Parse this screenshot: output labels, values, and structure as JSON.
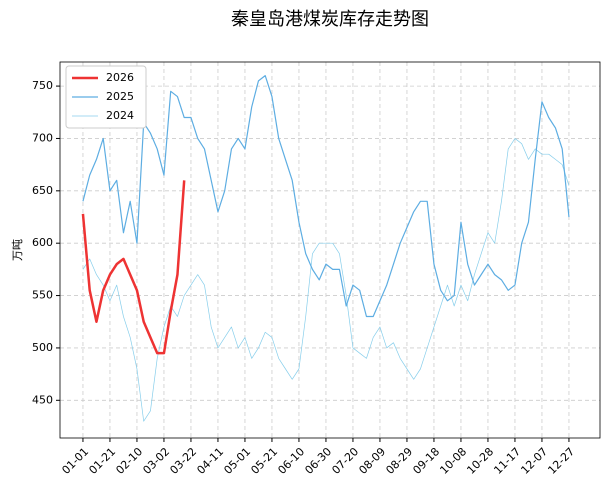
{
  "chart_data": {
    "type": "line",
    "title": "秦皇岛港煤炭库存走势图",
    "ylabel": "万吨",
    "x": [
      0,
      5,
      10,
      15,
      20,
      25,
      30,
      35,
      40,
      45,
      50,
      55,
      60,
      65,
      70,
      75,
      80,
      85,
      90,
      95,
      100,
      105,
      110,
      115,
      120,
      125,
      130,
      135,
      140,
      145,
      150,
      155,
      160,
      165,
      170,
      175,
      180,
      185,
      190,
      195,
      200,
      205,
      210,
      215,
      220,
      225,
      230,
      235,
      240,
      245,
      250,
      255,
      260,
      265,
      270,
      275,
      280,
      285,
      290,
      295,
      300,
      305,
      310,
      315,
      320,
      325,
      330,
      335,
      340,
      345,
      350,
      355,
      360
    ],
    "series": [
      {
        "name": "2026",
        "color": "#ee3333",
        "width": 2.5,
        "values": [
          628,
          555,
          525,
          555,
          570,
          580,
          585,
          570,
          555,
          525,
          510,
          495,
          495,
          535,
          570,
          660,
          null,
          null,
          null,
          null,
          null,
          null,
          null,
          null,
          null,
          null,
          null,
          null,
          null,
          null,
          null,
          null,
          null,
          null,
          null,
          null,
          null,
          null,
          null,
          null,
          null,
          null,
          null,
          null,
          null,
          null,
          null,
          null,
          null,
          null,
          null,
          null,
          null,
          null,
          null,
          null,
          null,
          null,
          null,
          null,
          null,
          null,
          null,
          null,
          null,
          null,
          null,
          null,
          null,
          null,
          null,
          null,
          null
        ]
      },
      {
        "name": "2025",
        "color": "#5dade2",
        "width": 1.2,
        "values": [
          640,
          665,
          680,
          700,
          650,
          660,
          610,
          640,
          600,
          715,
          705,
          690,
          665,
          745,
          740,
          720,
          720,
          700,
          690,
          660,
          630,
          650,
          690,
          700,
          690,
          730,
          755,
          760,
          740,
          700,
          680,
          660,
          620,
          590,
          575,
          565,
          580,
          575,
          575,
          540,
          560,
          555,
          530,
          530,
          545,
          560,
          580,
          600,
          615,
          630,
          640,
          640,
          580,
          555,
          545,
          550,
          620,
          580,
          560,
          570,
          580,
          570,
          565,
          555,
          560,
          600,
          620,
          680,
          735,
          720,
          710,
          690,
          625
        ]
      },
      {
        "name": "2024",
        "color": "#87ceeb",
        "width": 0.7,
        "values": [
          575,
          585,
          570,
          560,
          545,
          560,
          530,
          510,
          480,
          430,
          440,
          490,
          520,
          540,
          530,
          550,
          560,
          570,
          560,
          520,
          500,
          510,
          520,
          500,
          510,
          490,
          500,
          515,
          510,
          490,
          480,
          470,
          480,
          530,
          590,
          600,
          600,
          600,
          590,
          550,
          500,
          495,
          490,
          510,
          520,
          500,
          505,
          490,
          480,
          470,
          480,
          500,
          520,
          540,
          560,
          540,
          560,
          545,
          570,
          590,
          610,
          600,
          640,
          690,
          700,
          695,
          680,
          690,
          685,
          685,
          680,
          675,
          655
        ]
      }
    ],
    "xlim": [
      -17,
      383
    ],
    "xticks": [
      {
        "value": 0,
        "label": "01-01"
      },
      {
        "value": 20,
        "label": "01-21"
      },
      {
        "value": 40,
        "label": "02-10"
      },
      {
        "value": 60,
        "label": "03-02"
      },
      {
        "value": 80,
        "label": "03-22"
      },
      {
        "value": 100,
        "label": "04-11"
      },
      {
        "value": 120,
        "label": "05-01"
      },
      {
        "value": 140,
        "label": "05-21"
      },
      {
        "value": 160,
        "label": "06-10"
      },
      {
        "value": 180,
        "label": "06-30"
      },
      {
        "value": 200,
        "label": "07-20"
      },
      {
        "value": 220,
        "label": "08-09"
      },
      {
        "value": 240,
        "label": "08-29"
      },
      {
        "value": 260,
        "label": "09-18"
      },
      {
        "value": 280,
        "label": "10-08"
      },
      {
        "value": 300,
        "label": "10-28"
      },
      {
        "value": 320,
        "label": "11-17"
      },
      {
        "value": 340,
        "label": "12-07"
      },
      {
        "value": 360,
        "label": "12-27"
      }
    ],
    "ylim": [
      414,
      773
    ],
    "yticks": [
      450,
      500,
      550,
      600,
      650,
      700,
      750
    ],
    "grid": true,
    "legend": "upper-left"
  }
}
